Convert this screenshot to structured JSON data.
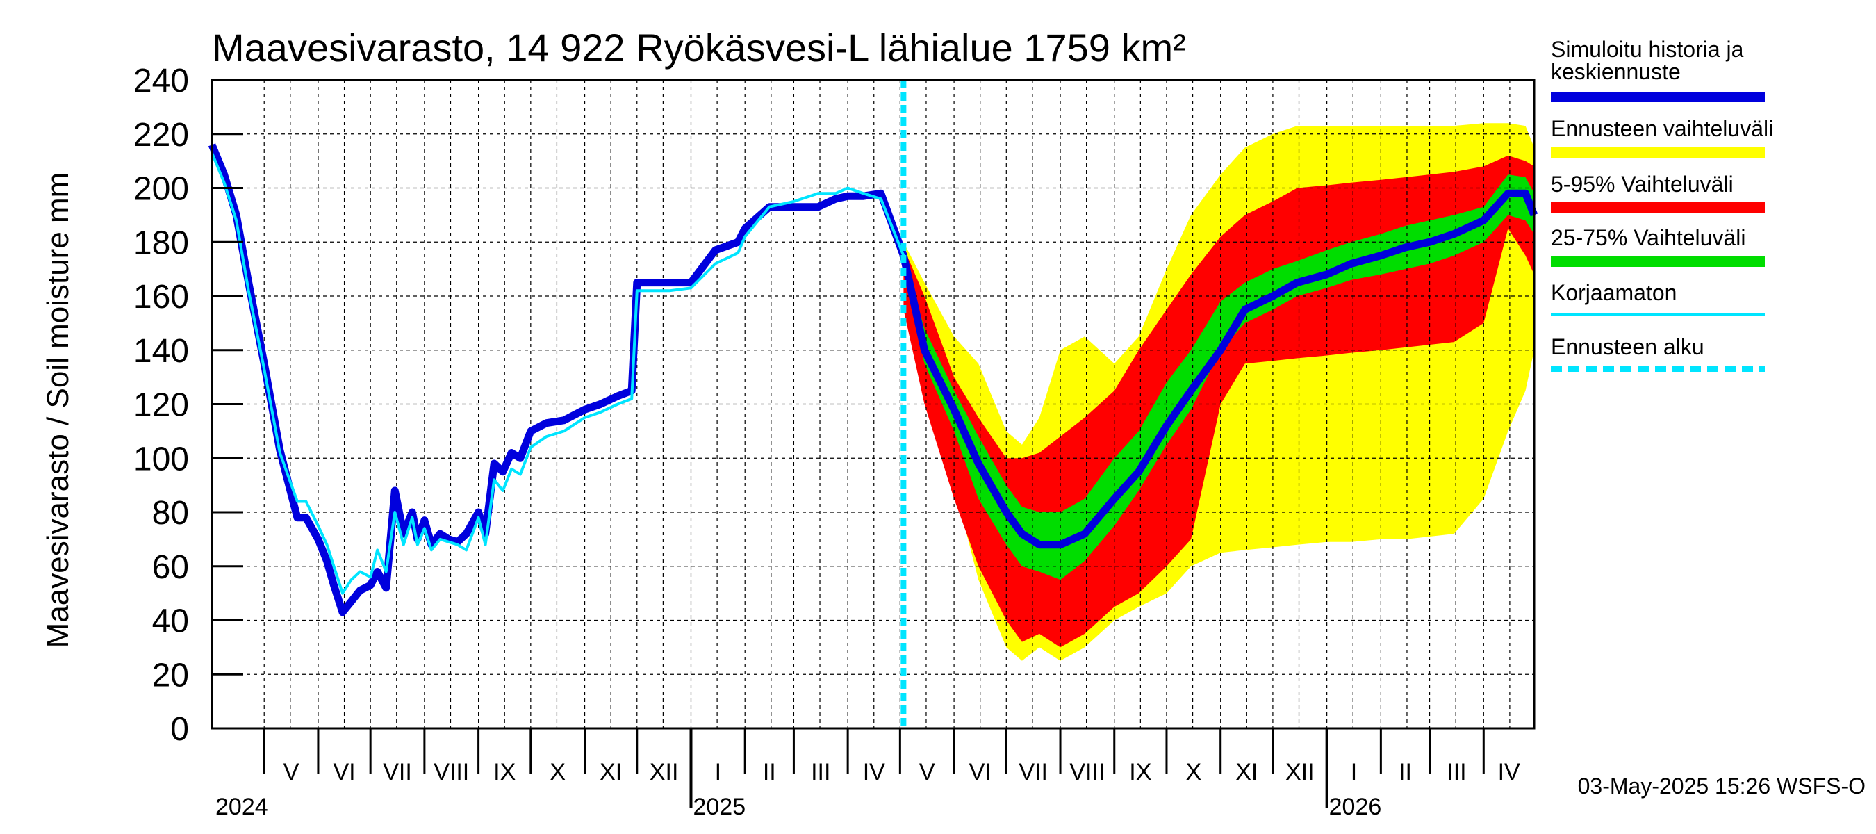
{
  "chart_data": {
    "type": "area",
    "title": "Maavesivarasto, 14 922 Ryökäsvesi-L lähialue 1759 km²",
    "ylabel": "Maavesivarasto / Soil moisture   mm",
    "ylim": [
      0,
      240
    ],
    "yticks": [
      0,
      20,
      40,
      60,
      80,
      100,
      120,
      140,
      160,
      180,
      200,
      220,
      240
    ],
    "xlim": [
      "2024-04-01",
      "2026-04-30"
    ],
    "grid": true,
    "legend_position": "right",
    "forecast_start": "2025-05-03",
    "months": [
      {
        "label": "V",
        "start": "2024-05-01"
      },
      {
        "label": "VI",
        "start": "2024-06-01"
      },
      {
        "label": "VII",
        "start": "2024-07-01"
      },
      {
        "label": "VIII",
        "start": "2024-08-01"
      },
      {
        "label": "IX",
        "start": "2024-09-01"
      },
      {
        "label": "X",
        "start": "2024-10-01"
      },
      {
        "label": "XI",
        "start": "2024-11-01"
      },
      {
        "label": "XII",
        "start": "2024-12-01"
      },
      {
        "label": "I",
        "start": "2025-01-01"
      },
      {
        "label": "II",
        "start": "2025-02-01"
      },
      {
        "label": "III",
        "start": "2025-03-01"
      },
      {
        "label": "IV",
        "start": "2025-04-01"
      },
      {
        "label": "V",
        "start": "2025-05-01"
      },
      {
        "label": "VI",
        "start": "2025-06-01"
      },
      {
        "label": "VII",
        "start": "2025-07-01"
      },
      {
        "label": "VIII",
        "start": "2025-08-01"
      },
      {
        "label": "IX",
        "start": "2025-09-01"
      },
      {
        "label": "X",
        "start": "2025-10-01"
      },
      {
        "label": "XI",
        "start": "2025-11-01"
      },
      {
        "label": "XII",
        "start": "2025-12-01"
      },
      {
        "label": "I",
        "start": "2026-01-01"
      },
      {
        "label": "II",
        "start": "2026-02-01"
      },
      {
        "label": "III",
        "start": "2026-03-01"
      },
      {
        "label": "IV",
        "start": "2026-04-01"
      }
    ],
    "years": [
      {
        "label": "2024",
        "date": "2024-05-01"
      },
      {
        "label": "2025",
        "date": "2025-01-01"
      },
      {
        "label": "2026",
        "date": "2026-01-01"
      }
    ],
    "colors": {
      "simulated": "#0000dd",
      "uncorrected": "#00e5ff",
      "range_full": "#ffff00",
      "range_5_95": "#ff0000",
      "range_25_75": "#00dd00",
      "forecast_start": "#00e5ff",
      "grid": "#000000"
    },
    "series": [
      {
        "name": "Simuloitu historia ja keskiennuste",
        "x": [
          "2024-04-01",
          "2024-04-08",
          "2024-04-15",
          "2024-04-22",
          "2024-05-01",
          "2024-05-10",
          "2024-05-20",
          "2024-05-25",
          "2024-06-01",
          "2024-06-06",
          "2024-06-10",
          "2024-06-15",
          "2024-06-20",
          "2024-06-25",
          "2024-07-01",
          "2024-07-05",
          "2024-07-10",
          "2024-07-15",
          "2024-07-20",
          "2024-07-25",
          "2024-07-28",
          "2024-08-01",
          "2024-08-05",
          "2024-08-10",
          "2024-08-15",
          "2024-08-20",
          "2024-08-25",
          "2024-09-01",
          "2024-09-05",
          "2024-09-10",
          "2024-09-15",
          "2024-09-20",
          "2024-09-25",
          "2024-10-01",
          "2024-10-10",
          "2024-10-20",
          "2024-11-01",
          "2024-11-10",
          "2024-11-20",
          "2024-11-28",
          "2024-12-01",
          "2024-12-10",
          "2024-12-20",
          "2025-01-01",
          "2025-01-15",
          "2025-01-28",
          "2025-02-01",
          "2025-02-15",
          "2025-03-01",
          "2025-03-15",
          "2025-03-25",
          "2025-04-01",
          "2025-04-10",
          "2025-04-20",
          "2025-05-03",
          "2025-05-15",
          "2025-06-01",
          "2025-06-15",
          "2025-07-01",
          "2025-07-10",
          "2025-07-20",
          "2025-08-01",
          "2025-08-15",
          "2025-09-01",
          "2025-09-15",
          "2025-10-01",
          "2025-10-15",
          "2025-11-01",
          "2025-11-15",
          "2025-12-01",
          "2025-12-15",
          "2026-01-01",
          "2026-01-15",
          "2026-02-01",
          "2026-02-15",
          "2026-03-01",
          "2026-03-15",
          "2026-04-01",
          "2026-04-15",
          "2026-04-25",
          "2026-04-30"
        ],
        "values": [
          216,
          205,
          190,
          165,
          135,
          103,
          78,
          78,
          70,
          62,
          53,
          43,
          47,
          51,
          53,
          58,
          52,
          88,
          72,
          80,
          70,
          77,
          68,
          72,
          70,
          69,
          72,
          80,
          72,
          98,
          95,
          102,
          100,
          110,
          113,
          114,
          118,
          120,
          123,
          125,
          165,
          165,
          165,
          165,
          177,
          180,
          185,
          193,
          193,
          193,
          196,
          197,
          197,
          198,
          175,
          140,
          118,
          98,
          80,
          72,
          68,
          68,
          72,
          85,
          95,
          112,
          125,
          140,
          155,
          160,
          165,
          168,
          172,
          175,
          178,
          180,
          183,
          188,
          198,
          198,
          190
        ]
      },
      {
        "name": "Korjaamaton",
        "x": [
          "2024-04-01",
          "2024-04-08",
          "2024-04-15",
          "2024-04-22",
          "2024-05-01",
          "2024-05-10",
          "2024-05-20",
          "2024-05-25",
          "2024-06-01",
          "2024-06-06",
          "2024-06-10",
          "2024-06-15",
          "2024-06-20",
          "2024-06-25",
          "2024-07-01",
          "2024-07-05",
          "2024-07-10",
          "2024-07-15",
          "2024-07-20",
          "2024-07-25",
          "2024-07-28",
          "2024-08-01",
          "2024-08-05",
          "2024-08-10",
          "2024-08-15",
          "2024-08-20",
          "2024-08-25",
          "2024-09-01",
          "2024-09-05",
          "2024-09-10",
          "2024-09-15",
          "2024-09-20",
          "2024-09-25",
          "2024-10-01",
          "2024-10-10",
          "2024-10-20",
          "2024-11-01",
          "2024-11-10",
          "2024-11-20",
          "2024-11-28",
          "2024-12-01",
          "2024-12-10",
          "2024-12-20",
          "2025-01-01",
          "2025-01-15",
          "2025-01-28",
          "2025-02-01",
          "2025-02-15",
          "2025-03-01",
          "2025-03-15",
          "2025-03-25",
          "2025-04-01",
          "2025-04-10",
          "2025-04-20",
          "2025-05-03"
        ],
        "values": [
          213,
          202,
          188,
          162,
          133,
          102,
          84,
          84,
          75,
          68,
          60,
          50,
          55,
          58,
          56,
          66,
          58,
          80,
          68,
          78,
          68,
          74,
          66,
          70,
          69,
          68,
          66,
          78,
          68,
          92,
          88,
          96,
          94,
          104,
          108,
          110,
          115,
          117,
          120,
          122,
          162,
          162,
          162,
          163,
          172,
          176,
          182,
          193,
          195,
          198,
          198,
          200,
          198,
          196,
          175
        ]
      }
    ],
    "bands": [
      {
        "name": "Ennusteen vaihteluväli",
        "x": [
          "2025-05-03",
          "2025-05-15",
          "2025-06-01",
          "2025-06-15",
          "2025-07-01",
          "2025-07-10",
          "2025-07-20",
          "2025-08-01",
          "2025-08-15",
          "2025-09-01",
          "2025-09-15",
          "2025-10-01",
          "2025-10-15",
          "2025-11-01",
          "2025-11-15",
          "2025-12-01",
          "2025-12-15",
          "2026-01-01",
          "2026-01-15",
          "2026-02-01",
          "2026-02-15",
          "2026-03-01",
          "2026-03-15",
          "2026-04-01",
          "2026-04-15",
          "2026-04-25",
          "2026-04-30"
        ],
        "low": [
          165,
          135,
          90,
          55,
          30,
          25,
          30,
          25,
          30,
          40,
          45,
          50,
          60,
          65,
          66,
          67,
          68,
          69,
          69,
          70,
          70,
          71,
          72,
          85,
          110,
          125,
          140
        ],
        "high": [
          180,
          165,
          145,
          135,
          110,
          105,
          115,
          140,
          145,
          135,
          145,
          170,
          190,
          205,
          215,
          220,
          223,
          223,
          223,
          223,
          223,
          223,
          223,
          224,
          224,
          223,
          215
        ]
      },
      {
        "name": "5-95% Vaihteluväli",
        "x": [
          "2025-05-03",
          "2025-05-15",
          "2025-06-01",
          "2025-06-15",
          "2025-07-01",
          "2025-07-10",
          "2025-07-20",
          "2025-08-01",
          "2025-08-15",
          "2025-09-01",
          "2025-09-15",
          "2025-10-01",
          "2025-10-15",
          "2025-11-01",
          "2025-11-15",
          "2025-12-01",
          "2025-12-15",
          "2026-01-01",
          "2026-01-15",
          "2026-02-01",
          "2026-02-15",
          "2026-03-01",
          "2026-03-15",
          "2026-04-01",
          "2026-04-15",
          "2026-04-25",
          "2026-04-30"
        ],
        "low": [
          155,
          120,
          85,
          60,
          40,
          32,
          35,
          30,
          35,
          45,
          50,
          60,
          70,
          120,
          135,
          136,
          137,
          138,
          139,
          140,
          141,
          142,
          143,
          150,
          185,
          175,
          168
        ],
        "high": [
          178,
          160,
          130,
          115,
          100,
          100,
          102,
          108,
          115,
          125,
          140,
          155,
          168,
          182,
          190,
          195,
          200,
          201,
          202,
          203,
          204,
          205,
          206,
          208,
          212,
          210,
          208
        ]
      },
      {
        "name": "25-75% Vaihteluväli",
        "x": [
          "2025-05-03",
          "2025-05-15",
          "2025-06-01",
          "2025-06-15",
          "2025-07-01",
          "2025-07-10",
          "2025-07-20",
          "2025-08-01",
          "2025-08-15",
          "2025-09-01",
          "2025-09-15",
          "2025-10-01",
          "2025-10-15",
          "2025-11-01",
          "2025-11-15",
          "2025-12-01",
          "2025-12-15",
          "2026-01-01",
          "2026-01-15",
          "2026-02-01",
          "2026-02-15",
          "2026-03-01",
          "2026-03-15",
          "2026-04-01",
          "2026-04-15",
          "2026-04-25",
          "2026-04-30"
        ],
        "low": [
          170,
          135,
          110,
          85,
          68,
          60,
          58,
          55,
          62,
          75,
          88,
          105,
          118,
          140,
          150,
          155,
          160,
          163,
          166,
          168,
          170,
          172,
          175,
          180,
          190,
          188,
          183
        ],
        "high": [
          175,
          148,
          125,
          108,
          90,
          82,
          80,
          80,
          85,
          100,
          110,
          128,
          140,
          158,
          165,
          170,
          173,
          177,
          180,
          183,
          186,
          188,
          190,
          193,
          205,
          204,
          198
        ]
      }
    ],
    "legend": [
      {
        "label": "Simuloitu historia ja keskiennuste",
        "color": "#0000dd",
        "style": "line"
      },
      {
        "label": "Ennusteen vaihteluväli",
        "color": "#ffff00",
        "style": "band"
      },
      {
        "label": "5-95% Vaihteluväli",
        "color": "#ff0000",
        "style": "band"
      },
      {
        "label": "25-75% Vaihteluväli",
        "color": "#00dd00",
        "style": "band"
      },
      {
        "label": "Korjaamaton",
        "color": "#00e5ff",
        "style": "thin"
      },
      {
        "label": "Ennusteen alku",
        "color": "#00e5ff",
        "style": "dashed"
      }
    ]
  },
  "footer": "03-May-2025 15:26 WSFS-O"
}
